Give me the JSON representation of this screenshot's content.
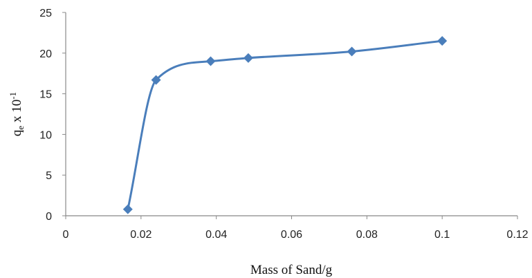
{
  "chart_data": {
    "type": "line",
    "smooth": true,
    "marker": "diamond",
    "title": "",
    "xlabel": "Mass of Sand/g",
    "ylabel": {
      "base": "q",
      "subscript": "e",
      "middle": " x 10",
      "superscript": "-1"
    },
    "xlim": [
      0,
      0.12
    ],
    "ylim": [
      0,
      25
    ],
    "xticks": [
      "0",
      "0.02",
      "0.04",
      "0.06",
      "0.08",
      "0.1",
      "0.12"
    ],
    "yticks": [
      "0",
      "5",
      "10",
      "15",
      "20",
      "25"
    ],
    "grid": false,
    "legend": "none",
    "series": [
      {
        "color": "#4a7ebb",
        "points": [
          {
            "x": 0.0165,
            "y": 0.8
          },
          {
            "x": 0.024,
            "y": 16.7
          },
          {
            "x": 0.0385,
            "y": 19.0
          },
          {
            "x": 0.0485,
            "y": 19.4
          },
          {
            "x": 0.076,
            "y": 20.2
          },
          {
            "x": 0.1,
            "y": 21.5
          }
        ]
      }
    ]
  }
}
